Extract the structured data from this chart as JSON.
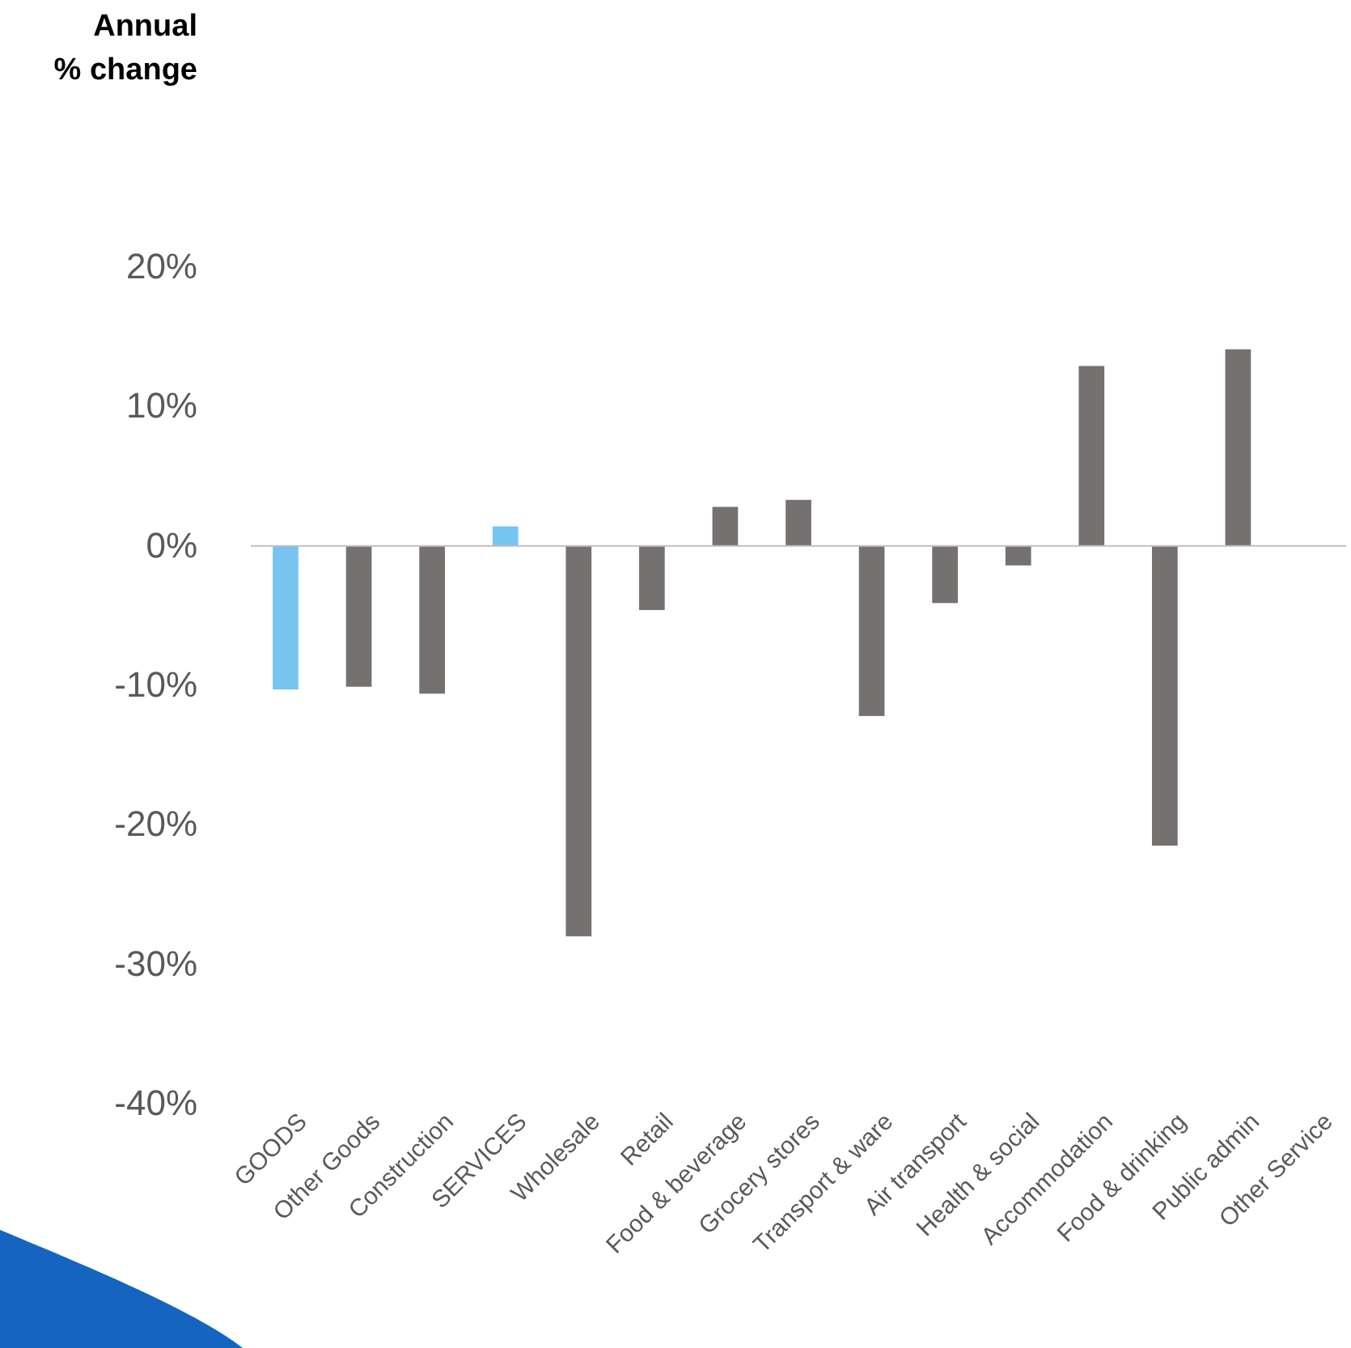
{
  "chart_data": {
    "type": "bar",
    "annotations": [
      "Annual % change"
    ],
    "categories": [
      "GOODS",
      "Other Goods",
      "Construction",
      "SERVICES",
      "Wholesale",
      "Retail",
      "Food & beverage",
      "Grocery stores",
      "Transport & ware",
      "Air transport",
      "Health & social",
      "Accommodation",
      "Food & drinking",
      "Public admin",
      "Other Service"
    ],
    "values": [
      -10.3,
      -10.1,
      -10.6,
      1.4,
      -28.0,
      -4.6,
      2.8,
      3.3,
      -12.2,
      -4.1,
      -1.4,
      12.9,
      -21.5,
      14.1,
      0
    ],
    "colors": [
      "#75c5f0",
      "#767171",
      "#767171",
      "#75c5f0",
      "#767171",
      "#767171",
      "#767171",
      "#767171",
      "#767171",
      "#767171",
      "#767171",
      "#767171",
      "#767171",
      "#767171",
      "#767171"
    ],
    "ylim": [
      -40,
      20
    ],
    "yticks": [
      {
        "value": -40,
        "label": "-40%"
      },
      {
        "value": -30,
        "label": "-30%"
      },
      {
        "value": -20,
        "label": "-20%"
      },
      {
        "value": -10,
        "label": "-10%"
      },
      {
        "value": 0,
        "label": "0%"
      },
      {
        "value": 10,
        "label": "10%"
      },
      {
        "value": 20,
        "label": "20%"
      }
    ]
  }
}
